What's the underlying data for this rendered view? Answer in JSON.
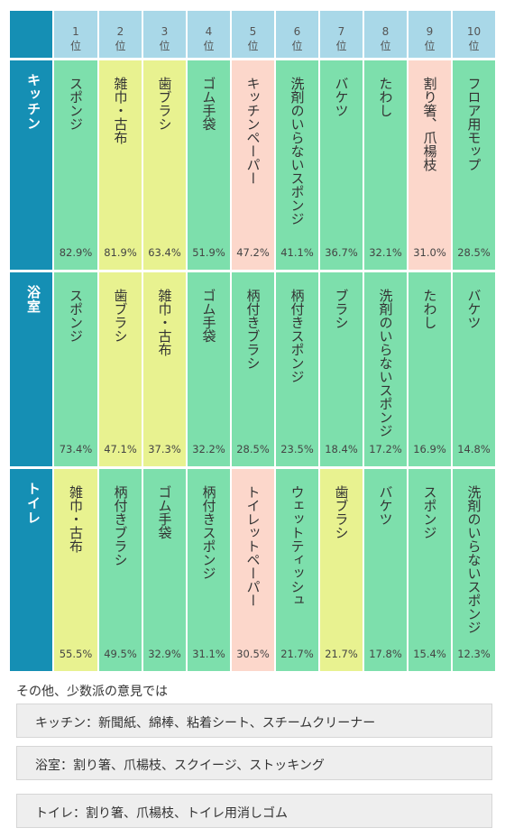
{
  "chart_data": {
    "type": "table",
    "ranks": [
      {
        "num": "1",
        "unit": "位"
      },
      {
        "num": "2",
        "unit": "位"
      },
      {
        "num": "3",
        "unit": "位"
      },
      {
        "num": "4",
        "unit": "位"
      },
      {
        "num": "5",
        "unit": "位"
      },
      {
        "num": "6",
        "unit": "位"
      },
      {
        "num": "7",
        "unit": "位"
      },
      {
        "num": "8",
        "unit": "位"
      },
      {
        "num": "9",
        "unit": "位"
      },
      {
        "num": "10",
        "unit": "位"
      }
    ],
    "rows": [
      {
        "label": "キッチン",
        "cells": [
          {
            "item": "スポンジ",
            "pct": "82.9%",
            "color": "#7ddfac"
          },
          {
            "item": "雑巾・古布",
            "pct": "81.9%",
            "color": "#e8f290"
          },
          {
            "item": "歯ブラシ",
            "pct": "63.4%",
            "color": "#e8f290"
          },
          {
            "item": "ゴム手袋",
            "pct": "51.9%",
            "color": "#7ddfac"
          },
          {
            "item": "キッチンペーパー",
            "pct": "47.2%",
            "color": "#fcd7cb"
          },
          {
            "item": "洗剤のいらないスポンジ",
            "pct": "41.1%",
            "color": "#7ddfac"
          },
          {
            "item": "バケツ",
            "pct": "36.7%",
            "color": "#7ddfac"
          },
          {
            "item": "たわし",
            "pct": "32.1%",
            "color": "#7ddfac"
          },
          {
            "item": "割り箸、爪楊枝",
            "pct": "31.0%",
            "color": "#fcd7cb"
          },
          {
            "item": "フロア用モップ",
            "pct": "28.5%",
            "color": "#7ddfac"
          }
        ]
      },
      {
        "label": "浴室",
        "cells": [
          {
            "item": "スポンジ",
            "pct": "73.4%",
            "color": "#7ddfac"
          },
          {
            "item": "歯ブラシ",
            "pct": "47.1%",
            "color": "#e8f290"
          },
          {
            "item": "雑巾・古布",
            "pct": "37.3%",
            "color": "#e8f290"
          },
          {
            "item": "ゴム手袋",
            "pct": "32.2%",
            "color": "#7ddfac"
          },
          {
            "item": "柄付きブラシ",
            "pct": "28.5%",
            "color": "#7ddfac"
          },
          {
            "item": "柄付きスポンジ",
            "pct": "23.5%",
            "color": "#7ddfac"
          },
          {
            "item": "ブラシ",
            "pct": "18.4%",
            "color": "#7ddfac"
          },
          {
            "item": "洗剤のいらないスポンジ",
            "pct": "17.2%",
            "color": "#7ddfac"
          },
          {
            "item": "たわし",
            "pct": "16.9%",
            "color": "#7ddfac"
          },
          {
            "item": "バケツ",
            "pct": "14.8%",
            "color": "#7ddfac"
          }
        ]
      },
      {
        "label": "トイレ",
        "cells": [
          {
            "item": "雑巾・古布",
            "pct": "55.5%",
            "color": "#e8f290"
          },
          {
            "item": "柄付きブラシ",
            "pct": "49.5%",
            "color": "#7ddfac"
          },
          {
            "item": "ゴム手袋",
            "pct": "32.9%",
            "color": "#7ddfac"
          },
          {
            "item": "柄付きスポンジ",
            "pct": "31.1%",
            "color": "#7ddfac"
          },
          {
            "item": "トイレットペーパー",
            "pct": "30.5%",
            "color": "#fcd7cb"
          },
          {
            "item": "ウェットティッシュ",
            "pct": "21.7%",
            "color": "#7ddfac"
          },
          {
            "item": "歯ブラシ",
            "pct": "21.7%",
            "color": "#e8f290"
          },
          {
            "item": "バケツ",
            "pct": "17.8%",
            "color": "#7ddfac"
          },
          {
            "item": "スポンジ",
            "pct": "15.4%",
            "color": "#7ddfac"
          },
          {
            "item": "洗剤のいらないスポンジ",
            "pct": "12.3%",
            "color": "#7ddfac"
          }
        ]
      }
    ],
    "colors": {
      "header_corner": "#158fb4",
      "header_cells": "#a9d8e8",
      "row_label": "#158fb4",
      "green": "#7ddfac",
      "yellow": "#e8f290",
      "pink": "#fcd7cb"
    }
  },
  "others": {
    "title": "その他、少数派の意見では",
    "items": [
      "キッチン：新聞紙、綿棒、粘着シート、スチームクリーナー",
      "浴室：割り箸、爪楊枝、スクイージ、ストッキング",
      "トイレ：割り箸、爪楊枝、トイレ用消しゴム"
    ]
  }
}
